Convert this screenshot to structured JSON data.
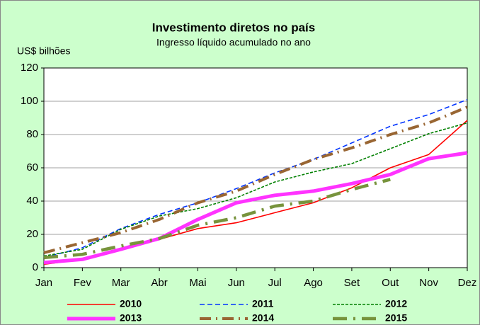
{
  "chart_data": {
    "type": "line",
    "title": "Investimento diretos no país",
    "subtitle": "Ingresso líquido acumulado no ano",
    "y_label": "US$ bilhões",
    "categories": [
      "Jan",
      "Fev",
      "Mar",
      "Abr",
      "Mai",
      "Jun",
      "Jul",
      "Ago",
      "Set",
      "Out",
      "Nov",
      "Dez"
    ],
    "series": [
      {
        "name": "2010",
        "color": "#ff0000",
        "values": [
          2,
          5,
          11,
          17,
          23.5,
          27,
          33,
          39,
          48,
          60,
          68,
          88.5
        ]
      },
      {
        "name": "2011",
        "color": "#0033ff",
        "values": [
          6,
          12,
          23.5,
          32,
          39,
          47.5,
          57,
          65,
          75,
          85,
          92,
          101
        ]
      },
      {
        "name": "2012",
        "color": "#008000",
        "values": [
          7,
          11,
          23,
          31,
          35.5,
          42,
          51.5,
          57.5,
          62.5,
          71.5,
          80.5,
          87
        ]
      },
      {
        "name": "2013",
        "color": "#ff33ff",
        "values": [
          3,
          5,
          11,
          17.5,
          29,
          39,
          43.5,
          46,
          50.5,
          56,
          65.5,
          69
        ]
      },
      {
        "name": "2014",
        "color": "#996633",
        "values": [
          9,
          15,
          21,
          29,
          39,
          46,
          56,
          65,
          72,
          80,
          87,
          96.5
        ]
      },
      {
        "name": "2015",
        "color": "#77933c",
        "values": [
          6,
          8,
          13,
          17.5,
          25.5,
          30,
          37,
          40,
          47,
          53,
          null,
          null
        ]
      }
    ],
    "ylim": [
      0,
      120
    ],
    "yticks": [
      0,
      20,
      40,
      60,
      80,
      100,
      120
    ],
    "grid": true
  }
}
